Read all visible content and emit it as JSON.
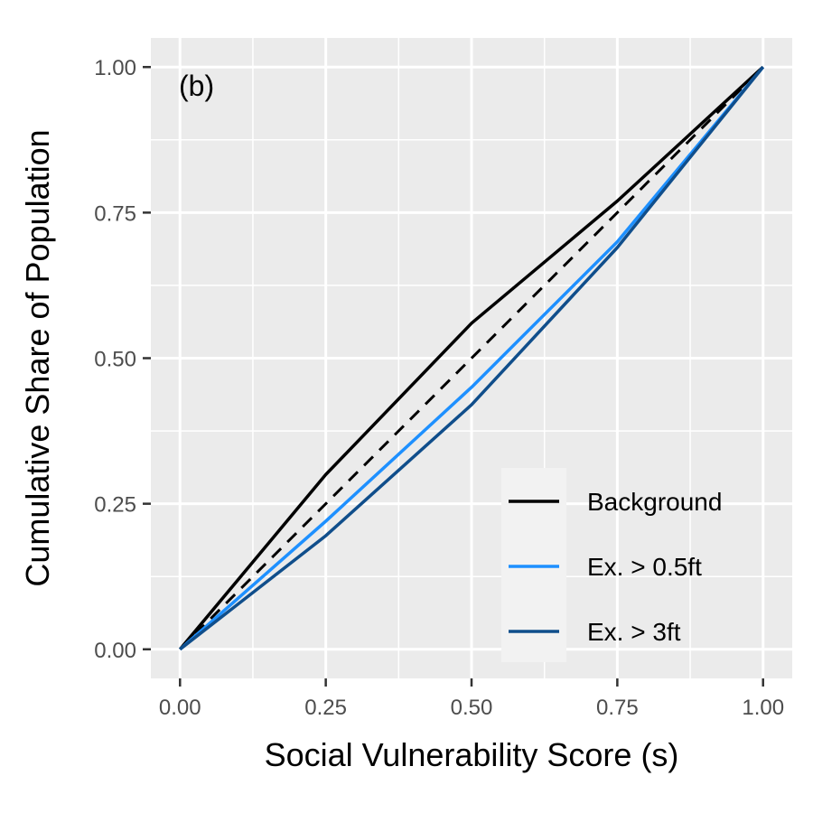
{
  "chart_data": {
    "type": "line",
    "panel_label": "(b)",
    "xlabel": "Social Vulnerability Score (s)",
    "ylabel": "Cumulative Share of Population",
    "xlim": [
      -0.05,
      1.05
    ],
    "ylim": [
      -0.05,
      1.05
    ],
    "x_ticks": [
      0,
      0.25,
      0.5,
      0.75,
      1
    ],
    "y_ticks": [
      0,
      0.25,
      0.5,
      0.75,
      1
    ],
    "x_tick_labels": [
      "0.00",
      "0.25",
      "0.50",
      "0.75",
      "1.00"
    ],
    "y_tick_labels": [
      "0.00",
      "0.25",
      "0.50",
      "0.75",
      "1.00"
    ],
    "grid": true,
    "legend_position": "bottom-right",
    "reference_line": {
      "style": "dashed",
      "color": "#000000",
      "x": [
        0,
        1
      ],
      "y": [
        0,
        1
      ]
    },
    "series": [
      {
        "name": "Background",
        "color": "#000000",
        "x": [
          0,
          0.25,
          0.5,
          0.75,
          1
        ],
        "y": [
          0,
          0.3,
          0.56,
          0.77,
          1
        ]
      },
      {
        "name": "Ex. > 0.5ft",
        "color": "#1e90ff",
        "x": [
          0,
          0.25,
          0.5,
          0.75,
          1
        ],
        "y": [
          0,
          0.22,
          0.45,
          0.7,
          1
        ]
      },
      {
        "name": "Ex. > 3ft",
        "color": "#104e8b",
        "x": [
          0,
          0.25,
          0.5,
          0.75,
          1
        ],
        "y": [
          0,
          0.195,
          0.42,
          0.69,
          1
        ]
      }
    ]
  }
}
